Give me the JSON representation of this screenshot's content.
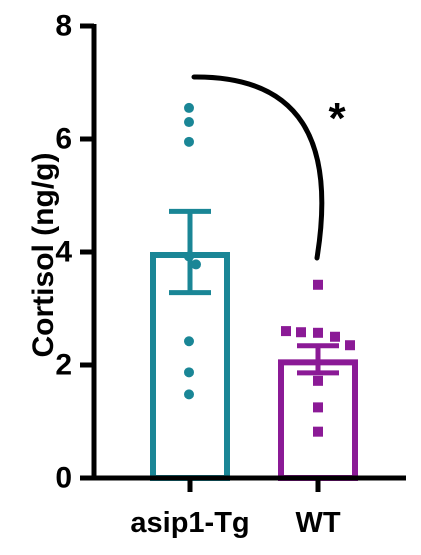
{
  "chart_data": {
    "type": "bar",
    "title": "",
    "xlabel": "",
    "ylabel": "Cortisol (ng/g)",
    "ylim": [
      0,
      8
    ],
    "yticks": [
      0,
      2,
      4,
      6,
      8
    ],
    "categories": [
      "asip1-Tg",
      "WT"
    ],
    "series": [
      {
        "values": [
          4.0,
          2.1
        ],
        "error": [
          0.72,
          0.24
        ],
        "colors": [
          "#1a8696",
          "#8b1a96"
        ]
      }
    ],
    "points": [
      {
        "category": "asip1-Tg",
        "marker": "circle",
        "color": "#1a8696",
        "values": [
          6.55,
          6.3,
          5.95,
          3.92,
          3.78,
          2.42,
          1.87,
          1.48
        ]
      },
      {
        "category": "WT",
        "marker": "square",
        "color": "#8b1a96",
        "values": [
          3.42,
          2.6,
          2.58,
          2.57,
          2.5,
          2.35,
          1.72,
          1.25,
          0.82
        ]
      }
    ],
    "annotations": [
      {
        "text": "*",
        "type": "significance"
      }
    ],
    "grid": false,
    "legend": "none"
  }
}
